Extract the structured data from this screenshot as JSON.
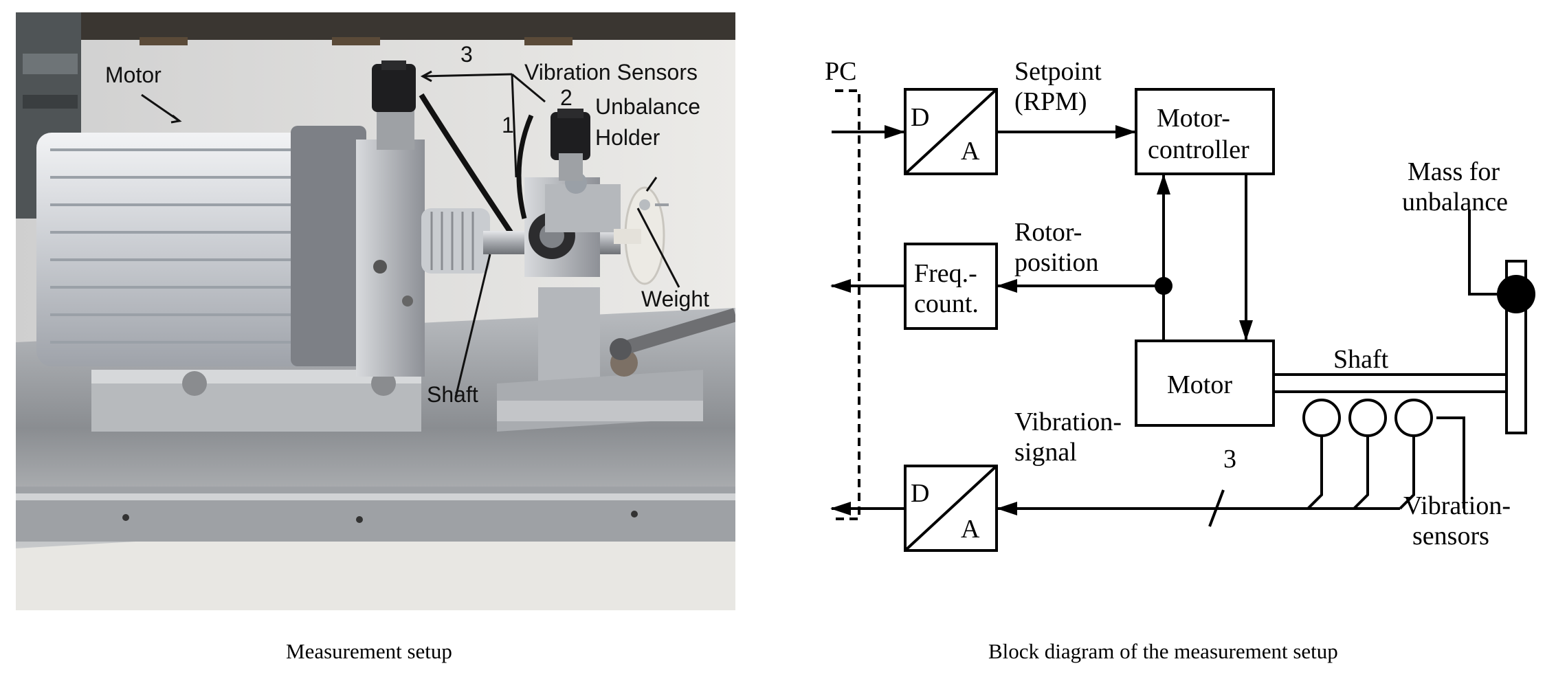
{
  "photo": {
    "labels": {
      "motor": "Motor",
      "vibration_sensors": "Vibration Sensors",
      "sensor_count": "3",
      "sensor_1": "1",
      "sensor_2": "2",
      "unbalance_line1": "Unbalance",
      "unbalance_line2": "Holder",
      "weight": "Weight",
      "shaft": "Shaft"
    },
    "caption": "Measurement setup"
  },
  "diagram": {
    "pc": "PC",
    "da_top": {
      "d": "D",
      "a": "A"
    },
    "setpoint_line1": "Setpoint",
    "setpoint_line2": "(RPM)",
    "motor_controller_line1": "Motor-",
    "motor_controller_line2": "controller",
    "freq_line1": "Freq.-",
    "freq_line2": "count.",
    "rotor_line1": "Rotor-",
    "rotor_line2": "position",
    "motor": "Motor",
    "shaft": "Shaft",
    "mass_line1": "Mass for",
    "mass_line2": "unbalance",
    "da_bottom": {
      "d": "D",
      "a": "A"
    },
    "vibration_signal_line1": "Vibration-",
    "vibration_signal_line2": "signal",
    "bus_count": "3",
    "vibration_sensors_line1": "Vibration-",
    "vibration_sensors_line2": "sensors",
    "caption": "Block diagram of the measurement setup"
  }
}
